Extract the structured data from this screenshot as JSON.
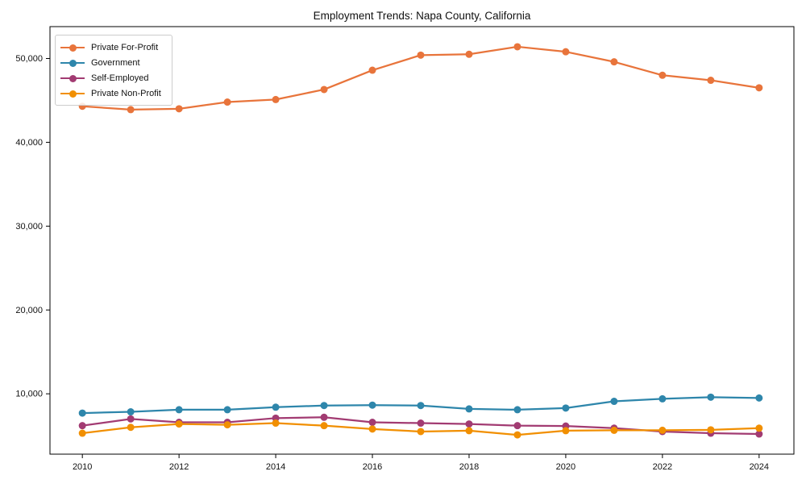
{
  "chart_data": {
    "type": "line",
    "title": "Employment Trends: Napa County, California",
    "x": [
      2010,
      2011,
      2012,
      2013,
      2014,
      2015,
      2016,
      2017,
      2018,
      2019,
      2020,
      2021,
      2022,
      2023,
      2024
    ],
    "x_tick_labels": [
      "2010",
      "2012",
      "2014",
      "2016",
      "2018",
      "2020",
      "2022",
      "2024"
    ],
    "x_tick_years": [
      2010,
      2012,
      2014,
      2016,
      2018,
      2020,
      2022,
      2024
    ],
    "y_ticks": [
      10000,
      20000,
      30000,
      40000,
      50000
    ],
    "y_tick_labels": [
      "10,000",
      "20,000",
      "30,000",
      "40,000",
      "50,000"
    ],
    "xlim": [
      2009.33,
      2024.72
    ],
    "ylim": [
      2800,
      53800
    ],
    "grid": false,
    "legend_position": "upper-left",
    "frame_color": "#000000",
    "text_color": "#111111",
    "series": [
      {
        "name": "Private For-Profit",
        "color": "#e8743b",
        "values": [
          44300,
          43900,
          44000,
          44800,
          45100,
          46300,
          48600,
          50400,
          50500,
          51400,
          50800,
          49600,
          48000,
          47400,
          46500
        ]
      },
      {
        "name": "Government",
        "color": "#2e86ab",
        "values": [
          7700,
          7850,
          8100,
          8100,
          8400,
          8600,
          8650,
          8600,
          8200,
          8100,
          8300,
          9100,
          9400,
          9600,
          9500
        ]
      },
      {
        "name": "Self-Employed",
        "color": "#a23b72",
        "values": [
          6200,
          7000,
          6600,
          6600,
          7100,
          7200,
          6600,
          6500,
          6400,
          6200,
          6150,
          5900,
          5500,
          5300,
          5200
        ]
      },
      {
        "name": "Private Non-Profit",
        "color": "#f18f01",
        "values": [
          5300,
          6000,
          6400,
          6300,
          6500,
          6200,
          5800,
          5500,
          5600,
          5100,
          5600,
          5650,
          5650,
          5700,
          5900
        ]
      }
    ]
  }
}
